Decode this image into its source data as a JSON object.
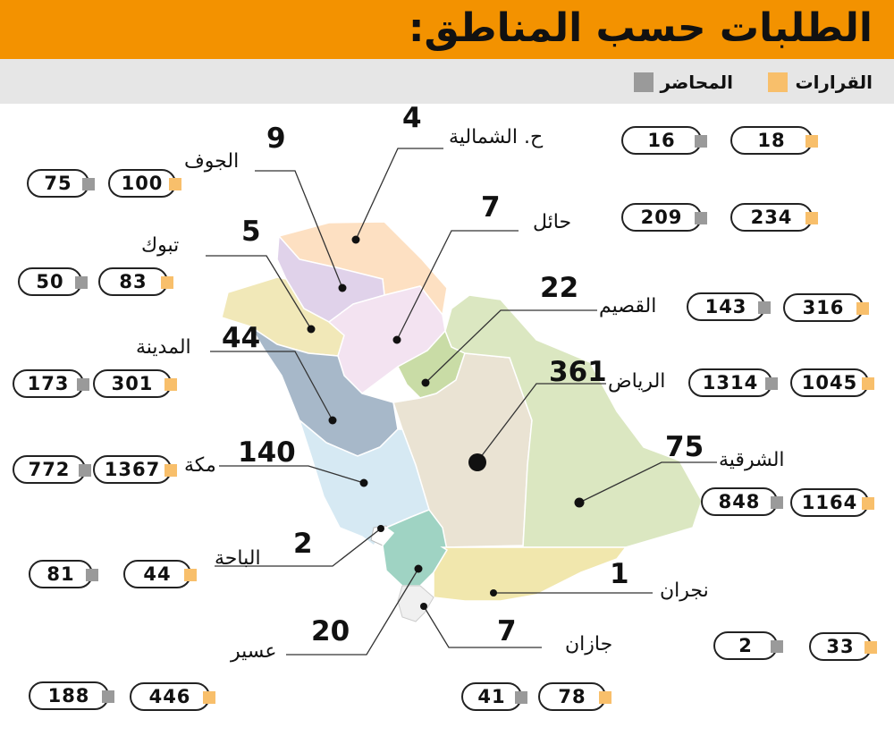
{
  "title": "الطلبات حسب المناطق:",
  "legend": {
    "decisions": "القرارات",
    "records": "المحاضر",
    "decisions_color": "#f8bf6b",
    "records_color": "#9a9a9a"
  },
  "regions": {
    "northern": {
      "name": "ح. الشمالية",
      "requests": "4",
      "decisions": "18",
      "records": "16"
    },
    "jouf": {
      "name": "الجوف",
      "requests": "9",
      "decisions": "100",
      "records": "75"
    },
    "hail": {
      "name": "حائل",
      "requests": "7",
      "decisions": "234",
      "records": "209"
    },
    "tabuk": {
      "name": "تبوك",
      "requests": "5",
      "decisions": "83",
      "records": "50"
    },
    "qassim": {
      "name": "القصيم",
      "requests": "22",
      "decisions": "316",
      "records": "143"
    },
    "madinah": {
      "name": "المدينة",
      "requests": "44",
      "decisions": "301",
      "records": "173"
    },
    "riyadh": {
      "name": "الرياض",
      "requests": "361",
      "decisions": "1045",
      "records": "1314"
    },
    "eastern": {
      "name": "الشرقية",
      "requests": "75",
      "decisions": "1164",
      "records": "848"
    },
    "makkah": {
      "name": "مكة",
      "requests": "140",
      "decisions": "1367",
      "records": "772"
    },
    "baha": {
      "name": "الباحة",
      "requests": "2",
      "decisions": "44",
      "records": "81"
    },
    "najran": {
      "name": "نجران",
      "requests": "1",
      "decisions": "33",
      "records": "2"
    },
    "asir": {
      "name": "عسير",
      "requests": "20",
      "decisions": "446",
      "records": "188"
    },
    "jazan": {
      "name": "جازان",
      "requests": "7",
      "decisions": "78",
      "records": "41"
    }
  }
}
